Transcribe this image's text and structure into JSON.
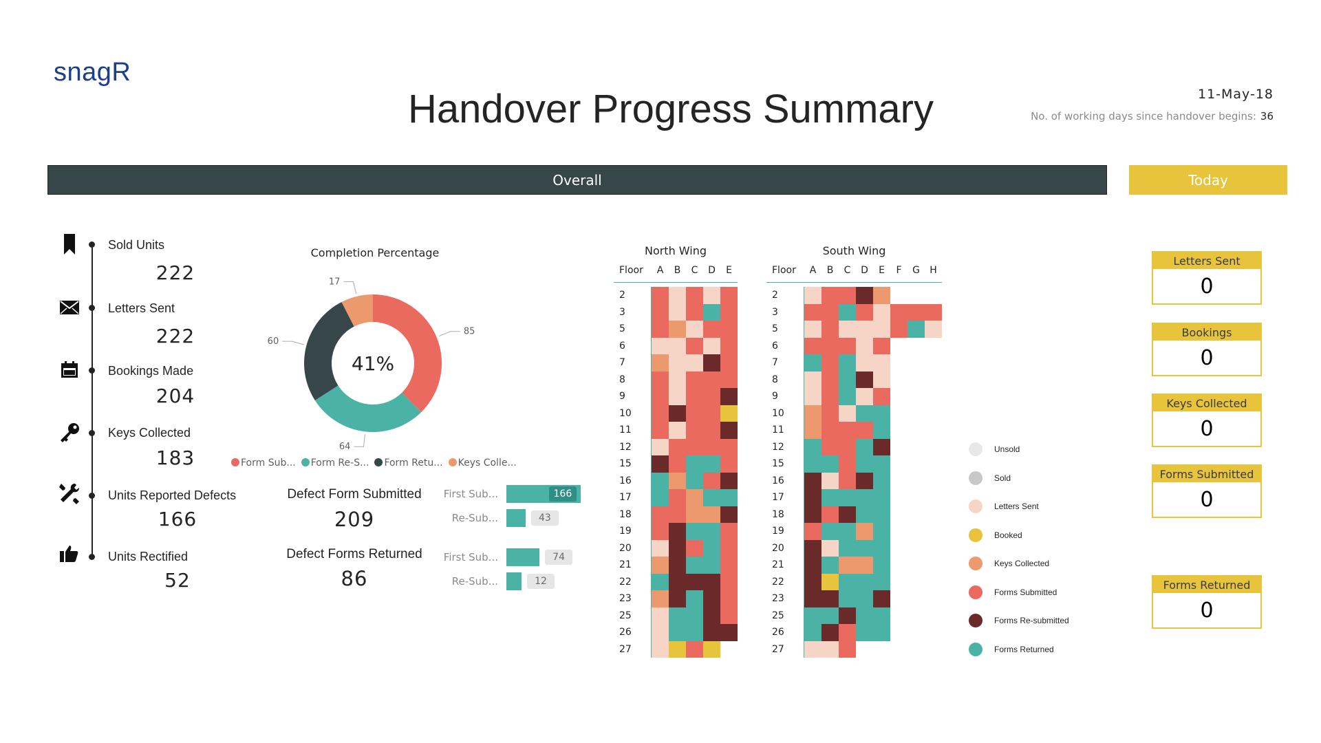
{
  "header": {
    "logo": "snagR",
    "title": "Handover Progress Summary",
    "date": "11-May-18",
    "days_label": "No. of working days since handover begins:",
    "days_value": "36"
  },
  "tabs": {
    "overall": "Overall",
    "today": "Today"
  },
  "timeline": [
    {
      "label": "Sold Units",
      "value": "222",
      "icon": "bookmark-icon"
    },
    {
      "label": "Letters Sent",
      "value": "222",
      "icon": "envelope-icon"
    },
    {
      "label": "Bookings Made",
      "value": "204",
      "icon": "calendar-icon"
    },
    {
      "label": "Keys Collected",
      "value": "183",
      "icon": "key-icon"
    },
    {
      "label": "Units Reported Defects",
      "value": "166",
      "icon": "tools-icon"
    },
    {
      "label": "Units Rectified",
      "value": "52",
      "icon": "thumbs-up-icon"
    }
  ],
  "completion": {
    "title": "Completion Percentage",
    "center": "41%",
    "slices": [
      {
        "label": "Form Sub...",
        "value": 85,
        "color": "#ea6a5f"
      },
      {
        "label": "Form Re-S...",
        "value": 64,
        "color": "#4bb3a5"
      },
      {
        "label": "Form Retu...",
        "value": 60,
        "color": "#374649"
      },
      {
        "label": "Keys Colle...",
        "value": 17,
        "color": "#ec9a6d"
      }
    ]
  },
  "defects": {
    "submitted_label": "Defect Form Submitted",
    "submitted_value": "209",
    "returned_label": "Defect Forms Returned",
    "returned_value": "86",
    "submitted_bars": [
      {
        "label": "First Sub...",
        "value": 166
      },
      {
        "label": "Re-Sub...",
        "value": 43
      }
    ],
    "returned_bars": [
      {
        "label": "First Sub...",
        "value": 74
      },
      {
        "label": "Re-Sub...",
        "value": 12
      }
    ]
  },
  "heatmap_colors": {
    "N": "#e8e8e8",
    "S": "#c8c8c8",
    "L": "#f6d5c6",
    "B": "#e8c43c",
    "K": "#ec9a6d",
    "F": "#ea6a5f",
    "R": "#6b2a2a",
    "T": "#4bb3a5"
  },
  "north": {
    "title": "North Wing",
    "floor_header": "Floor",
    "cols": [
      "A",
      "B",
      "C",
      "D",
      "E"
    ],
    "floors": [
      "2",
      "3",
      "5",
      "6",
      "7",
      "8",
      "9",
      "10",
      "11",
      "12",
      "15",
      "16",
      "17",
      "18",
      "19",
      "20",
      "21",
      "22",
      "23",
      "25",
      "26",
      "27"
    ],
    "rows": [
      "FLFLF",
      "FLFTF",
      "FKLFF",
      "LLFLF",
      "KLLRF",
      "FLFFF",
      "FLFFR",
      "FRFFB",
      "FLFFR",
      "LFFFF",
      "RFTTF",
      "TKTFR",
      "TFKTT",
      "FFKKR",
      "FRTTF",
      "LRFTF",
      "KRTTF",
      "TRRRF",
      "KRTRF",
      "LTTRF",
      "LTTRR",
      "LBFB-"
    ]
  },
  "south": {
    "title": "South Wing",
    "floor_header": "Floor",
    "cols": [
      "A",
      "B",
      "C",
      "D",
      "E",
      "F",
      "G",
      "H"
    ],
    "floors": [
      "2",
      "3",
      "5",
      "6",
      "7",
      "8",
      "9",
      "10",
      "11",
      "12",
      "15",
      "16",
      "17",
      "18",
      "19",
      "20",
      "21",
      "22",
      "23",
      "25",
      "26",
      "27"
    ],
    "rows": [
      "LFFRK---",
      "FFTFLFFF",
      "LFLLLFTL",
      "FFFLF---",
      "TFTLL---",
      "LFTRL---",
      "LFTLF---",
      "KFLTT---",
      "KFFFT---",
      "TFFTR---",
      "TTFTT---",
      "RLFRT---",
      "RTTTT---",
      "RFRTT---",
      "FTTKT---",
      "RLTTT---",
      "RTKKT---",
      "RBTTT---",
      "RRTTR---",
      "TTRTT---",
      "TRFTT---",
      "LLF-----"
    ]
  },
  "legend": [
    {
      "label": "Unsold",
      "code": "N"
    },
    {
      "label": "Sold",
      "code": "S"
    },
    {
      "label": "Letters Sent",
      "code": "L"
    },
    {
      "label": "Booked",
      "code": "B"
    },
    {
      "label": "Keys Collected",
      "code": "K"
    },
    {
      "label": "Forms Submitted",
      "code": "F"
    },
    {
      "label": "Forms Re-submitted",
      "code": "R"
    },
    {
      "label": "Forms Returned",
      "code": "T"
    }
  ],
  "today_cards": [
    {
      "label": "Letters Sent",
      "value": "0"
    },
    {
      "label": "Bookings",
      "value": "0"
    },
    {
      "label": "Keys Collected",
      "value": "0"
    },
    {
      "label": "Forms Submitted",
      "value": "0"
    },
    {
      "label": "Forms Returned",
      "value": "0"
    }
  ]
}
